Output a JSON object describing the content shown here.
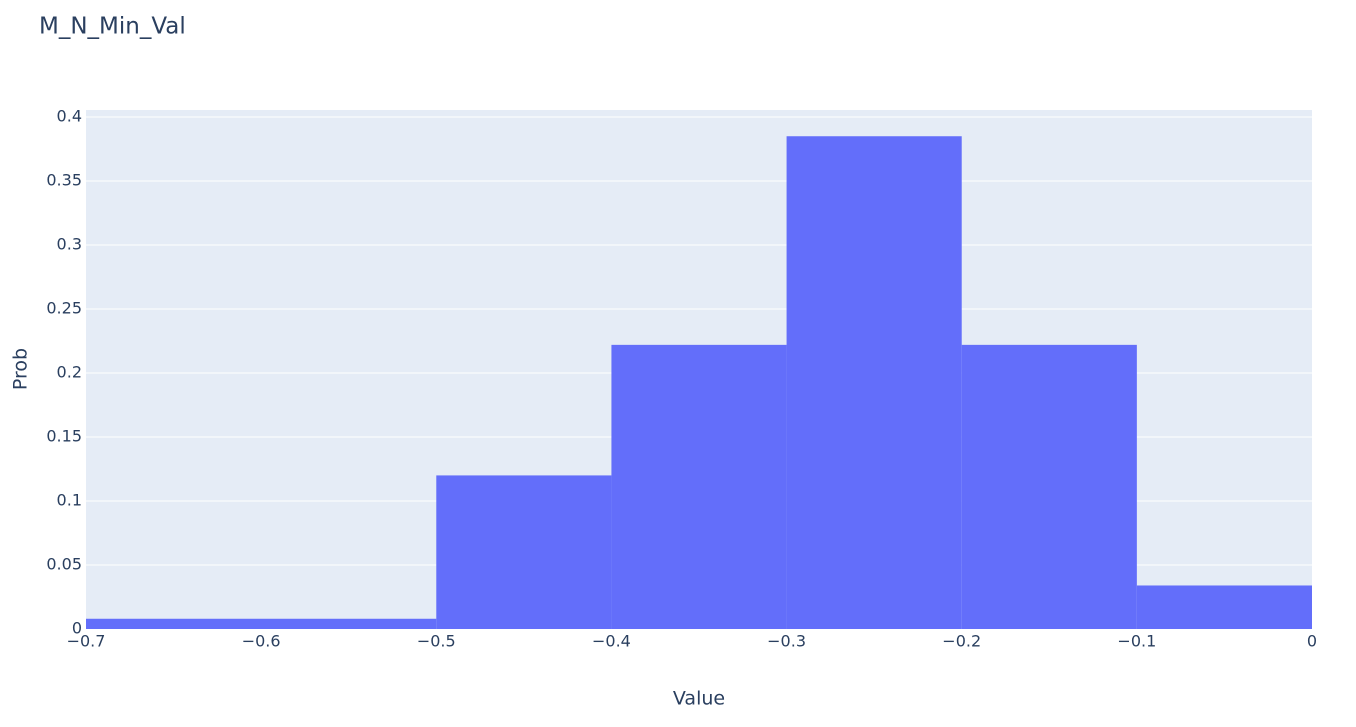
{
  "chart_data": {
    "type": "histogram",
    "title": "M_N_Min_Val",
    "x_label": "Value",
    "y_label": "Prob",
    "bins": [
      -0.7,
      -0.5,
      -0.4,
      -0.3,
      -0.2,
      -0.1,
      0
    ],
    "values": [
      0.008,
      0.12,
      0.222,
      0.385,
      0.222,
      0.034
    ],
    "color": "#636efa",
    "xlim": [
      -0.7,
      0
    ],
    "xticks": [
      {
        "value": -0.7,
        "label": "−0.7"
      },
      {
        "value": -0.6,
        "label": "−0.6"
      },
      {
        "value": -0.5,
        "label": "−0.5"
      },
      {
        "value": -0.4,
        "label": "−0.4"
      },
      {
        "value": -0.3,
        "label": "−0.3"
      },
      {
        "value": -0.2,
        "label": "−0.2"
      },
      {
        "value": -0.1,
        "label": "−0.1"
      },
      0
    ],
    "ylim": [
      0,
      0.4055
    ],
    "yticks": [
      0,
      0.05,
      0.1,
      0.15,
      0.2,
      0.25,
      0.3,
      0.35,
      0.4
    ],
    "grid": true
  }
}
